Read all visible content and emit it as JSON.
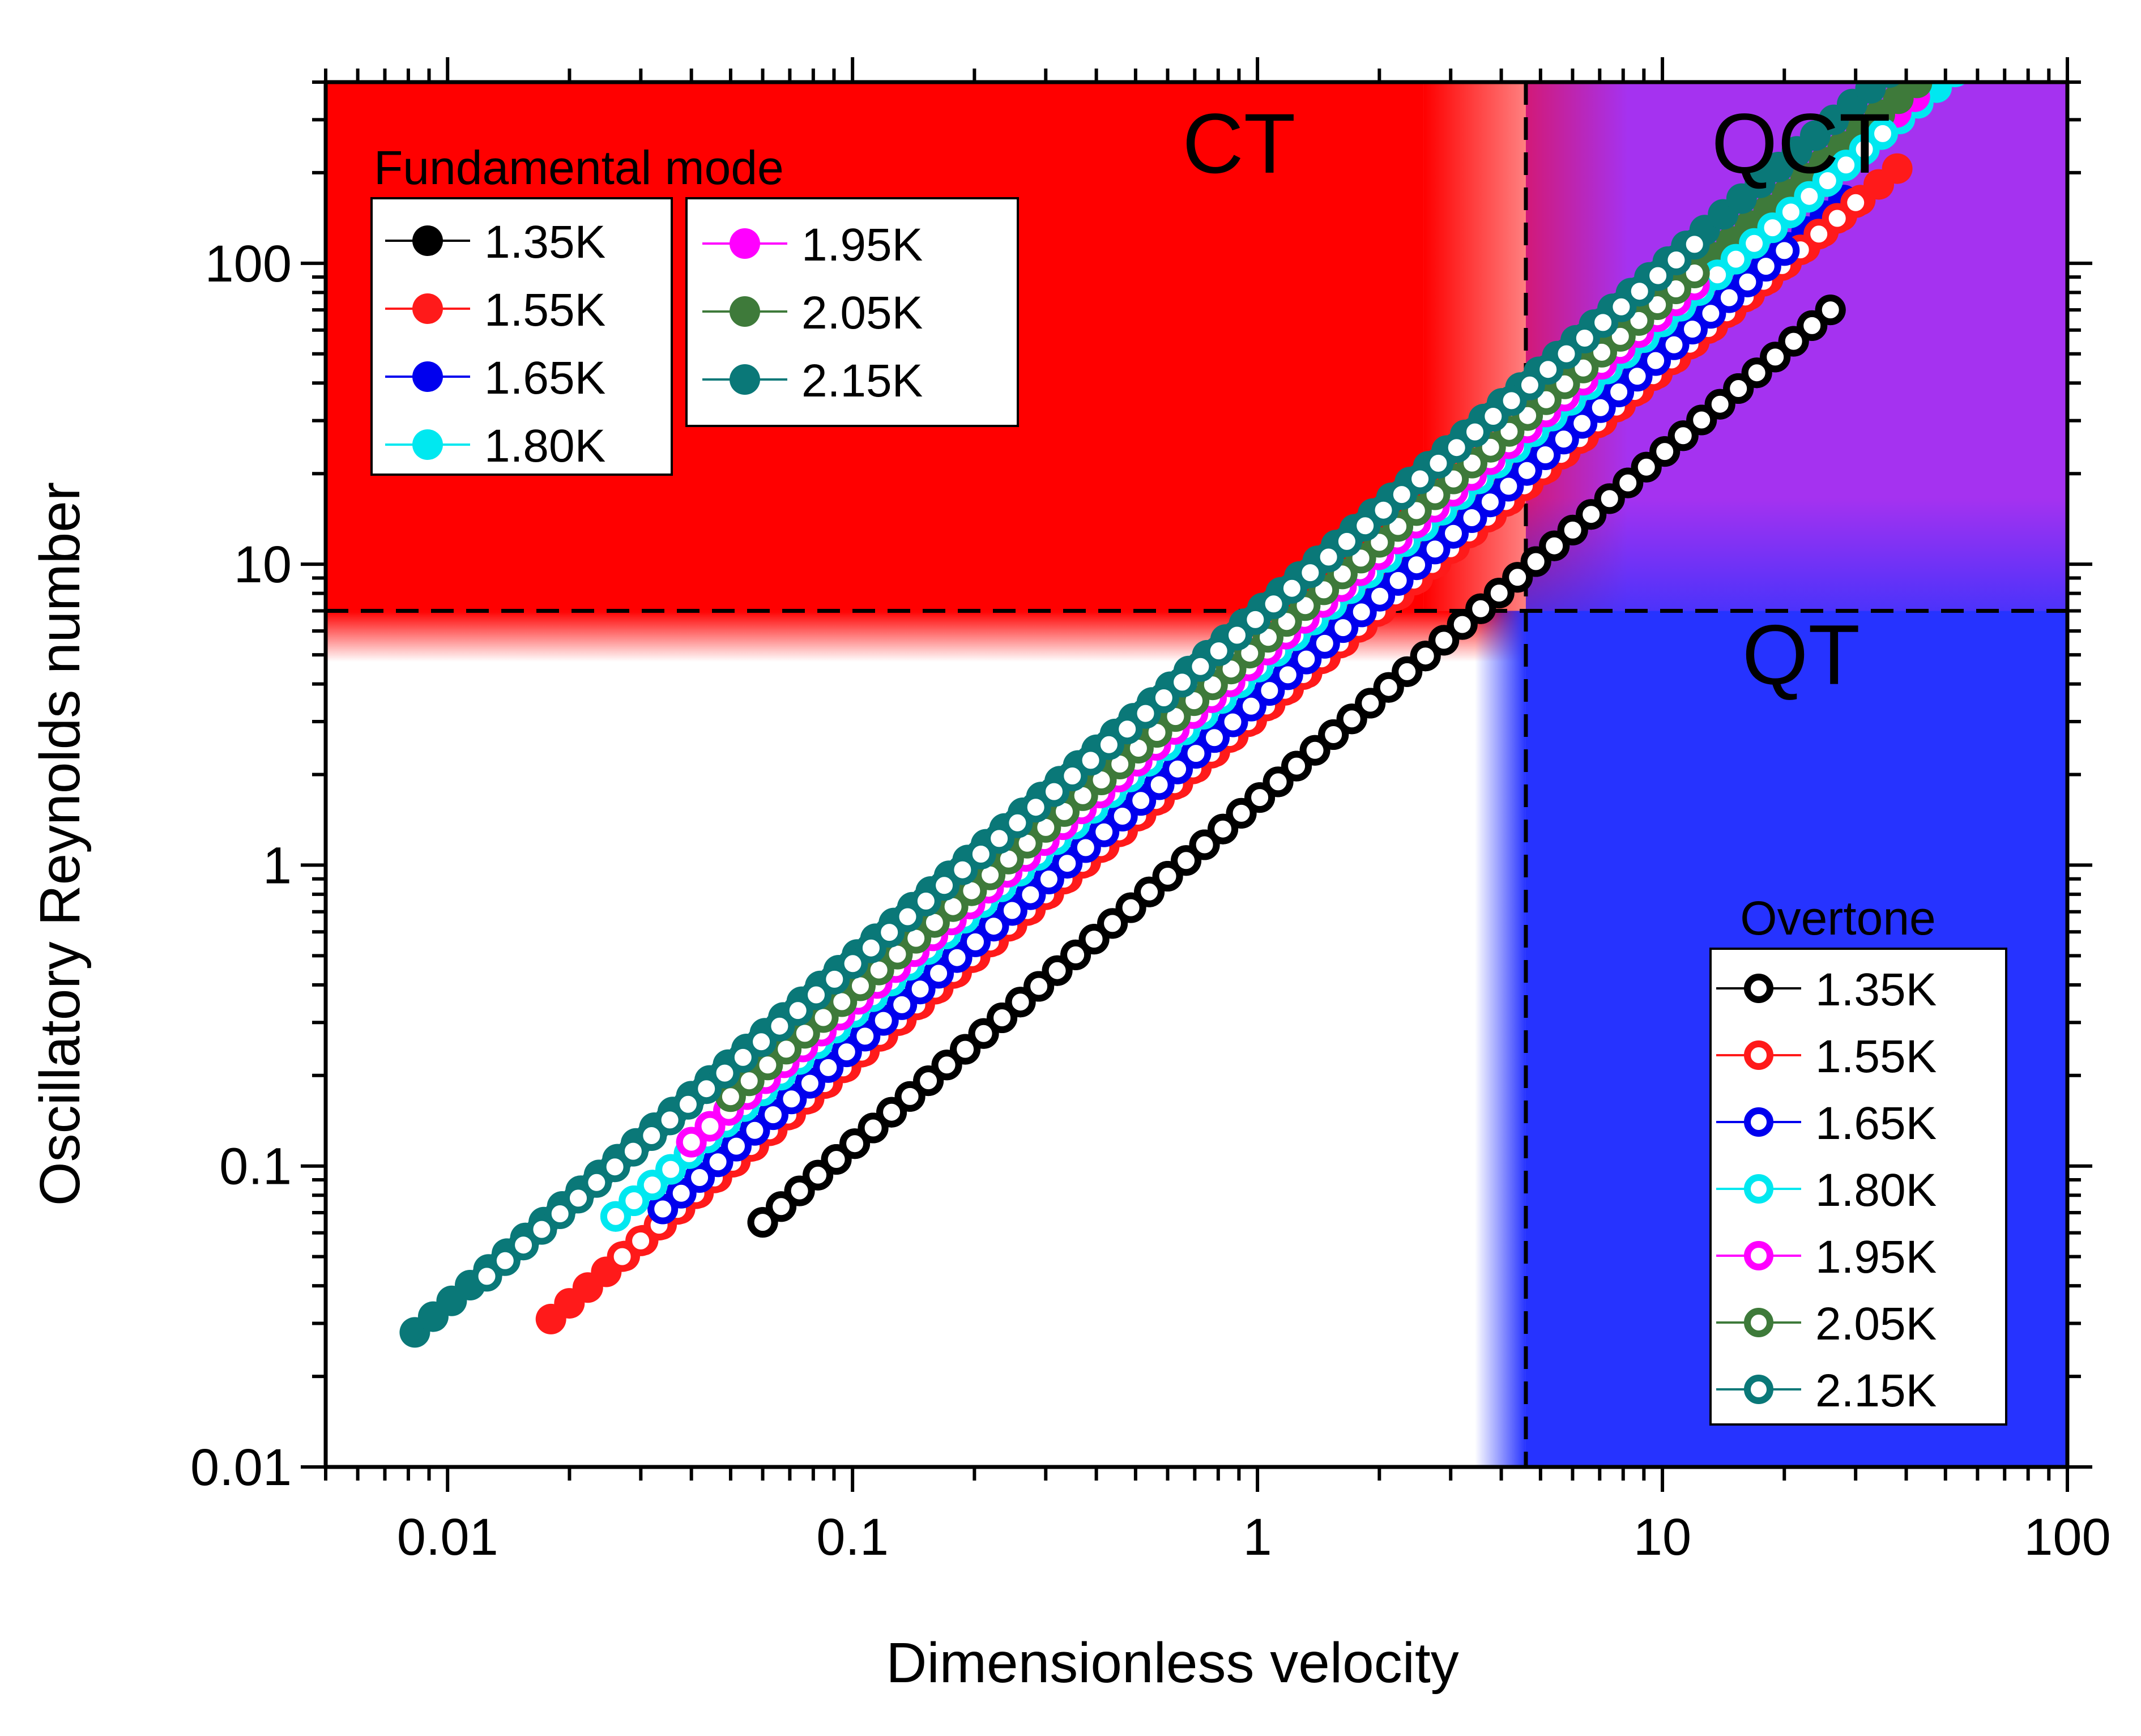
{
  "chart_data": {
    "type": "scatter",
    "xlabel": "Dimensionless velocity",
    "ylabel": "Oscillatory Reynolds number",
    "x_scale": "log",
    "y_scale": "log",
    "xlim": [
      0.005,
      100
    ],
    "ylim": [
      0.01,
      400
    ],
    "x_ticks": [
      {
        "value": 0.01,
        "label": "0.01"
      },
      {
        "value": 0.1,
        "label": "0.1"
      },
      {
        "value": 1,
        "label": "1"
      },
      {
        "value": 10,
        "label": "10"
      },
      {
        "value": 100,
        "label": "100"
      }
    ],
    "y_ticks": [
      {
        "value": 0.01,
        "label": "0.01"
      },
      {
        "value": 0.1,
        "label": "0.1"
      },
      {
        "value": 1,
        "label": "1"
      },
      {
        "value": 10,
        "label": "10"
      },
      {
        "value": 100,
        "label": "100"
      }
    ],
    "threshold_x": 4.6,
    "threshold_y": 7,
    "regions": [
      {
        "label": "CT",
        "color": "#ff0000"
      },
      {
        "label": "QCT",
        "color": "#a532f0"
      },
      {
        "label": "QT",
        "color": "#2633ff"
      }
    ],
    "region_label_positions": {
      "CT": [
        0.9,
        200
      ],
      "QCT": [
        22,
        200
      ],
      "QT": [
        22,
        4.0
      ]
    },
    "legend_fundamental_title": "Fundamental mode",
    "legend_overtone_title": "Overtone",
    "legend_placement": {
      "fundamental": "top-left",
      "overtone": "bottom-right"
    },
    "series": [
      {
        "temp": "1.35K",
        "color": "#000000",
        "fund": {
          "x0": 0.06,
          "x1": 26,
          "y0": 0.065
        },
        "over": {
          "x0": 0.06,
          "x1": 26,
          "y0": 0.065
        }
      },
      {
        "temp": "1.55K",
        "color": "#ff1a1a",
        "fund": {
          "x0": 0.018,
          "x1": 38,
          "y0": 0.031
        },
        "over": {
          "x0": 0.027,
          "x1": 30,
          "y0": 0.05
        }
      },
      {
        "temp": "1.65K",
        "color": "#0000ee",
        "fund": {
          "x0": 0.034,
          "x1": 28,
          "y0": 0.072
        },
        "over": {
          "x0": 0.034,
          "x1": 20,
          "y0": 0.072
        }
      },
      {
        "temp": "1.80K",
        "color": "#00e8f0",
        "fund": {
          "x0": 0.026,
          "x1": 65,
          "y0": 0.068
        },
        "over": {
          "x0": 0.026,
          "x1": 35,
          "y0": 0.068
        }
      },
      {
        "temp": "1.95K",
        "color": "#ff00ff",
        "fund": {
          "x0": 0.04,
          "x1": 42,
          "y0": 0.12
        },
        "over": {
          "x0": 0.04,
          "x1": 12,
          "y0": 0.12
        }
      },
      {
        "temp": "2.05K",
        "color": "#3e7a3a",
        "fund": {
          "x0": 0.05,
          "x1": 72,
          "y0": 0.17
        },
        "over": {
          "x0": 0.05,
          "x1": 12,
          "y0": 0.17
        }
      },
      {
        "temp": "2.15K",
        "color": "#0a7878",
        "fund": {
          "x0": 0.0083,
          "x1": 68,
          "y0": 0.028
        },
        "over": {
          "x0": 0.0125,
          "x1": 12,
          "y0": 0.043
        }
      }
    ],
    "slope": 1.15,
    "points_per_decade": 22
  }
}
